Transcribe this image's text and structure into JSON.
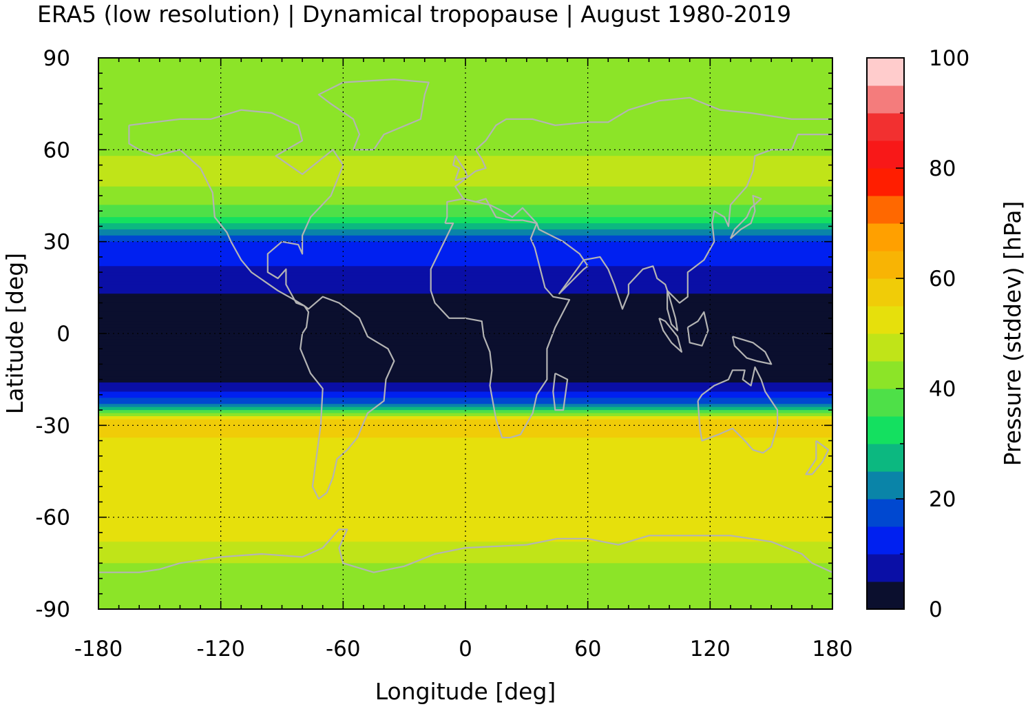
{
  "chart_data": {
    "type": "heatmap",
    "title": "ERA5 (low resolution) | Dynamical tropopause | August 1980-2019",
    "xlabel": "Longitude [deg]",
    "ylabel": "Latitude [deg]",
    "xlim": [
      -180,
      180
    ],
    "ylim": [
      -90,
      90
    ],
    "xticks": [
      "-180",
      "-120",
      "-60",
      "0",
      "60",
      "120",
      "180"
    ],
    "yticks": [
      "90",
      "60",
      "30",
      "0",
      "-30",
      "-60",
      "-90"
    ],
    "grid": true,
    "colorbar": {
      "label": "Pressure (stddev) [hPa]",
      "range": [
        0,
        100
      ],
      "ticks": [
        "0",
        "20",
        "40",
        "60",
        "80",
        "100"
      ],
      "colors": [
        "#0b0f2e",
        "#0a0fa6",
        "#0020f0",
        "#0048d0",
        "#0a84a8",
        "#0cb880",
        "#14e060",
        "#4ee048",
        "#8ce428",
        "#c0e418",
        "#e6e00c",
        "#f0cc08",
        "#f8b404",
        "#ffa000",
        "#ff6800",
        "#ff1e00",
        "#f81818",
        "#f23030",
        "#f47c7c",
        "#ffcccc"
      ]
    },
    "latitude_profile": [
      {
        "lat": 85,
        "value": 42
      },
      {
        "lat": 75,
        "value": 40
      },
      {
        "lat": 65,
        "value": 41
      },
      {
        "lat": 55,
        "value": 47
      },
      {
        "lat": 45,
        "value": 44
      },
      {
        "lat": 38,
        "value": 35
      },
      {
        "lat": 30,
        "value": 14
      },
      {
        "lat": 20,
        "value": 9
      },
      {
        "lat": 10,
        "value": 3
      },
      {
        "lat": 0,
        "value": 2
      },
      {
        "lat": -10,
        "value": 2
      },
      {
        "lat": -18,
        "value": 6
      },
      {
        "lat": -24,
        "value": 22
      },
      {
        "lat": -28,
        "value": 58
      },
      {
        "lat": -32,
        "value": 56
      },
      {
        "lat": -40,
        "value": 52
      },
      {
        "lat": -50,
        "value": 51
      },
      {
        "lat": -60,
        "value": 52
      },
      {
        "lat": -68,
        "value": 50
      },
      {
        "lat": -75,
        "value": 45
      },
      {
        "lat": -85,
        "value": 42
      }
    ]
  }
}
